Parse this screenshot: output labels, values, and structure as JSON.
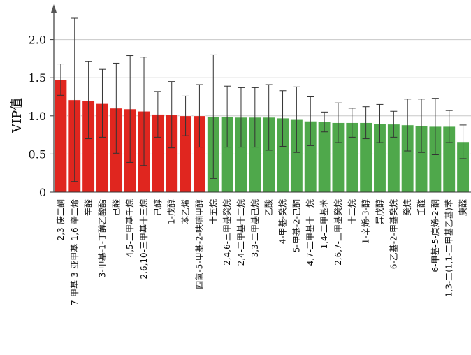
{
  "chart_data": {
    "type": "bar",
    "title": "",
    "xlabel": "",
    "ylabel": "VIP值",
    "ylim": [
      0,
      2.5
    ],
    "yticks": [
      "0",
      "0.5",
      "1.0",
      "1.5",
      "2.0"
    ],
    "grid": "horizontal",
    "legend": "none",
    "threshold": 1.0,
    "colors": {
      "above_threshold": "#e0261f",
      "below_threshold": "#4fa84b",
      "error_bar": "#333333",
      "grid": "#c8c8c8"
    },
    "categories": [
      "2,3-庚二酮",
      "7-甲基-3-亚甲基-1,6-辛二烯",
      "辛醛",
      "3-甲基-1-丁醇乙酸酯",
      "己醛",
      "4,5-二甲基壬烷",
      "2,6,10-三甲基十三烷",
      "己醇",
      "1-戊醇",
      "苯乙烯",
      "四氢-5-甲基-2-呋喃甲醇",
      "十五烷",
      "2,4,6-三甲基癸烷",
      "2,4-二甲基十二烷",
      "3,3-二甲基己烷",
      "乙酸",
      "4-甲基-癸烷",
      "5-甲基-2-己酮",
      "4,7-二甲基十一烷",
      "1,4-二甲基苯",
      "2,6,7-三甲基癸烷",
      "十二烷",
      "1-辛烯-3-醇",
      "异戊醇",
      "6-乙基-2-甲基癸烷",
      "癸烷",
      "壬醛",
      "6-甲基-5-庚烯-2-酮",
      "1,3-二(1,1-二甲基乙基)苯",
      "庚醛"
    ],
    "values": [
      1.47,
      1.21,
      1.2,
      1.16,
      1.1,
      1.09,
      1.06,
      1.02,
      1.01,
      1.0,
      1.0,
      0.99,
      0.99,
      0.98,
      0.98,
      0.98,
      0.97,
      0.95,
      0.93,
      0.92,
      0.91,
      0.91,
      0.91,
      0.9,
      0.89,
      0.88,
      0.87,
      0.86,
      0.86,
      0.66
    ],
    "error_upper": [
      1.68,
      2.28,
      1.71,
      1.61,
      1.69,
      1.79,
      1.77,
      1.32,
      1.45,
      1.26,
      1.41,
      1.8,
      1.39,
      1.37,
      1.37,
      1.41,
      1.33,
      1.38,
      1.25,
      1.05,
      1.17,
      1.1,
      1.12,
      1.15,
      1.06,
      1.22,
      1.22,
      1.23,
      1.07,
      0.88
    ],
    "error_lower": [
      1.27,
      0.14,
      0.7,
      0.72,
      0.51,
      0.39,
      0.35,
      0.72,
      0.58,
      0.74,
      0.59,
      0.18,
      0.59,
      0.59,
      0.59,
      0.55,
      0.6,
      0.52,
      0.61,
      0.79,
      0.65,
      0.72,
      0.7,
      0.65,
      0.72,
      0.54,
      0.52,
      0.49,
      0.65,
      0.44
    ]
  }
}
